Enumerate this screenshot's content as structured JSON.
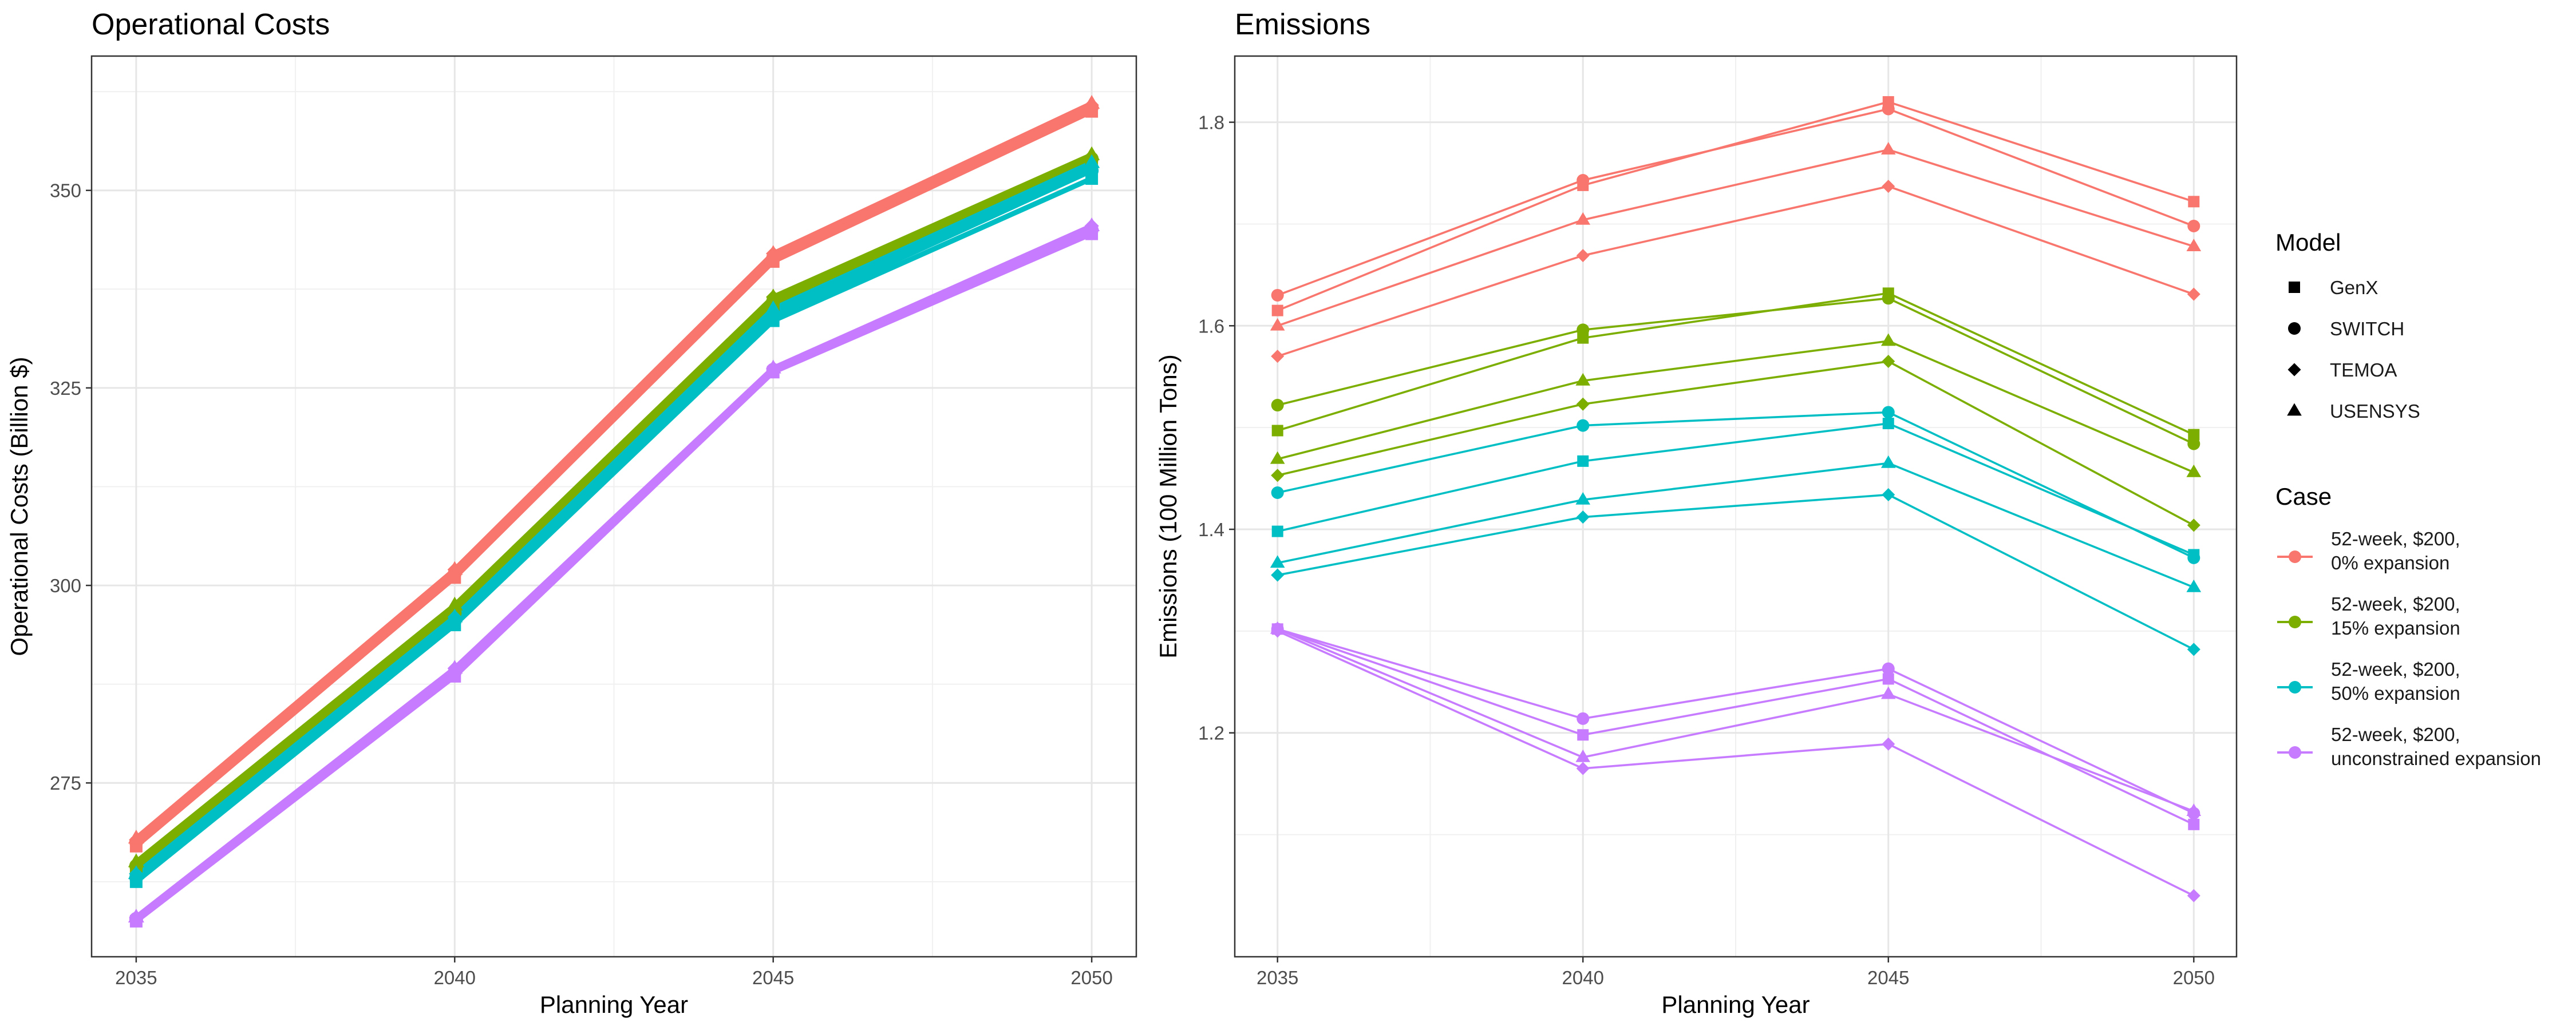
{
  "chart_data": [
    {
      "type": "line",
      "title": "Operational Costs",
      "xlabel": "Planning Year",
      "ylabel": "Operational Costs (Billion $)",
      "x": [
        2035,
        2040,
        2045,
        2050
      ],
      "xticks": [
        "2035",
        "2040",
        "2045",
        "2050"
      ],
      "yticks": [
        275,
        300,
        325,
        350
      ],
      "ytick_labels": [
        "275",
        "300",
        "325",
        "350"
      ],
      "xlim": [
        2034.3,
        2050.7
      ],
      "ylim": [
        253,
        367
      ],
      "grid": true,
      "series": [
        {
          "case": "52-week, $200, 0% expansion",
          "model": "GenX",
          "values": [
            267.0,
            301.0,
            341.0,
            360.0
          ]
        },
        {
          "case": "52-week, $200, 0% expansion",
          "model": "SWITCH",
          "values": [
            267.5,
            301.5,
            341.5,
            360.5
          ]
        },
        {
          "case": "52-week, $200, 0% expansion",
          "model": "TEMOA",
          "values": [
            267.8,
            302.0,
            342.0,
            360.8
          ]
        },
        {
          "case": "52-week, $200, 0% expansion",
          "model": "USENSYS",
          "values": [
            268.0,
            302.0,
            342.0,
            361.0
          ]
        },
        {
          "case": "52-week, $200, 15% expansion",
          "model": "GenX",
          "values": [
            264.0,
            296.0,
            335.5,
            353.5
          ]
        },
        {
          "case": "52-week, $200, 15% expansion",
          "model": "SWITCH",
          "values": [
            264.5,
            296.5,
            336.0,
            354.0
          ]
        },
        {
          "case": "52-week, $200, 15% expansion",
          "model": "TEMOA",
          "values": [
            264.5,
            297.0,
            336.5,
            354.0
          ]
        },
        {
          "case": "52-week, $200, 15% expansion",
          "model": "USENSYS",
          "values": [
            265.0,
            297.5,
            336.5,
            354.5
          ]
        },
        {
          "case": "52-week, $200, 50% expansion",
          "model": "GenX",
          "values": [
            262.5,
            295.0,
            333.5,
            351.5
          ]
        },
        {
          "case": "52-week, $200, 50% expansion",
          "model": "SWITCH",
          "values": [
            263.0,
            295.5,
            334.0,
            352.5
          ]
        },
        {
          "case": "52-week, $200, 50% expansion",
          "model": "TEMOA",
          "values": [
            263.5,
            296.0,
            334.5,
            353.0
          ]
        },
        {
          "case": "52-week, $200, 50% expansion",
          "model": "USENSYS",
          "values": [
            263.5,
            296.0,
            335.0,
            353.5
          ]
        },
        {
          "case": "52-week, $200, unconstrained expansion",
          "model": "GenX",
          "values": [
            257.5,
            288.5,
            327.0,
            344.5
          ]
        },
        {
          "case": "52-week, $200, unconstrained expansion",
          "model": "SWITCH",
          "values": [
            257.8,
            289.0,
            327.3,
            345.0
          ]
        },
        {
          "case": "52-week, $200, unconstrained expansion",
          "model": "TEMOA",
          "values": [
            258.0,
            289.5,
            327.5,
            345.5
          ]
        },
        {
          "case": "52-week, $200, unconstrained expansion",
          "model": "USENSYS",
          "values": [
            258.0,
            289.5,
            327.5,
            345.5
          ]
        }
      ]
    },
    {
      "type": "line",
      "title": "Emissions",
      "xlabel": "Planning Year",
      "ylabel": "Emissions (100 Million Tons)",
      "x": [
        2035,
        2040,
        2045,
        2050
      ],
      "xticks": [
        "2035",
        "2040",
        "2045",
        "2050"
      ],
      "yticks": [
        1.2,
        1.4,
        1.6,
        1.8
      ],
      "ytick_labels": [
        "1.2",
        "1.4",
        "1.6",
        "1.8"
      ],
      "xlim": [
        2034.3,
        2050.7
      ],
      "ylim": [
        0.98,
        1.865
      ],
      "grid": true,
      "series": [
        {
          "case": "52-week, $200, 0% expansion",
          "model": "GenX",
          "values": [
            1.615,
            1.738,
            1.82,
            1.722
          ]
        },
        {
          "case": "52-week, $200, 0% expansion",
          "model": "SWITCH",
          "values": [
            1.63,
            1.743,
            1.813,
            1.698
          ]
        },
        {
          "case": "52-week, $200, 0% expansion",
          "model": "TEMOA",
          "values": [
            1.57,
            1.669,
            1.737,
            1.631
          ]
        },
        {
          "case": "52-week, $200, 0% expansion",
          "model": "USENSYS",
          "values": [
            1.6,
            1.704,
            1.773,
            1.678
          ]
        },
        {
          "case": "52-week, $200, 15% expansion",
          "model": "GenX",
          "values": [
            1.497,
            1.588,
            1.632,
            1.493
          ]
        },
        {
          "case": "52-week, $200, 15% expansion",
          "model": "SWITCH",
          "values": [
            1.522,
            1.596,
            1.627,
            1.484
          ]
        },
        {
          "case": "52-week, $200, 15% expansion",
          "model": "TEMOA",
          "values": [
            1.453,
            1.523,
            1.565,
            1.404
          ]
        },
        {
          "case": "52-week, $200, 15% expansion",
          "model": "USENSYS",
          "values": [
            1.469,
            1.546,
            1.585,
            1.456
          ]
        },
        {
          "case": "52-week, $200, 50% expansion",
          "model": "GenX",
          "values": [
            1.398,
            1.467,
            1.504,
            1.375
          ]
        },
        {
          "case": "52-week, $200, 50% expansion",
          "model": "SWITCH",
          "values": [
            1.436,
            1.502,
            1.515,
            1.372
          ]
        },
        {
          "case": "52-week, $200, 50% expansion",
          "model": "TEMOA",
          "values": [
            1.355,
            1.412,
            1.434,
            1.282
          ]
        },
        {
          "case": "52-week, $200, 50% expansion",
          "model": "USENSYS",
          "values": [
            1.367,
            1.429,
            1.465,
            1.343
          ]
        },
        {
          "case": "52-week, $200, unconstrained expansion",
          "model": "GenX",
          "values": [
            1.302,
            1.198,
            1.253,
            1.11
          ]
        },
        {
          "case": "52-week, $200, unconstrained expansion",
          "model": "SWITCH",
          "values": [
            1.302,
            1.214,
            1.263,
            1.121
          ]
        },
        {
          "case": "52-week, $200, unconstrained expansion",
          "model": "TEMOA",
          "values": [
            1.3,
            1.165,
            1.189,
            1.04
          ]
        },
        {
          "case": "52-week, $200, unconstrained expansion",
          "model": "USENSYS",
          "values": [
            1.302,
            1.176,
            1.238,
            1.123
          ]
        }
      ]
    }
  ],
  "legend": {
    "placement": "right",
    "model_title": "Model",
    "models": [
      {
        "name": "GenX",
        "shape": "square"
      },
      {
        "name": "SWITCH",
        "shape": "circle"
      },
      {
        "name": "TEMOA",
        "shape": "diamond"
      },
      {
        "name": "USENSYS",
        "shape": "triangle"
      }
    ],
    "case_title": "Case",
    "cases": [
      {
        "name": "52-week, $200, 0% expansion",
        "lines": [
          "52-week, $200,",
          "0% expansion"
        ],
        "color": "#F8766D"
      },
      {
        "name": "52-week, $200, 15% expansion",
        "lines": [
          "52-week, $200,",
          "15% expansion"
        ],
        "color": "#7CAE00"
      },
      {
        "name": "52-week, $200, 50% expansion",
        "lines": [
          "52-week, $200,",
          "50% expansion"
        ],
        "color": "#00BFC4"
      },
      {
        "name": "52-week, $200, unconstrained expansion",
        "lines": [
          "52-week, $200,",
          "unconstrained expansion"
        ],
        "color": "#C77CFF"
      }
    ]
  }
}
